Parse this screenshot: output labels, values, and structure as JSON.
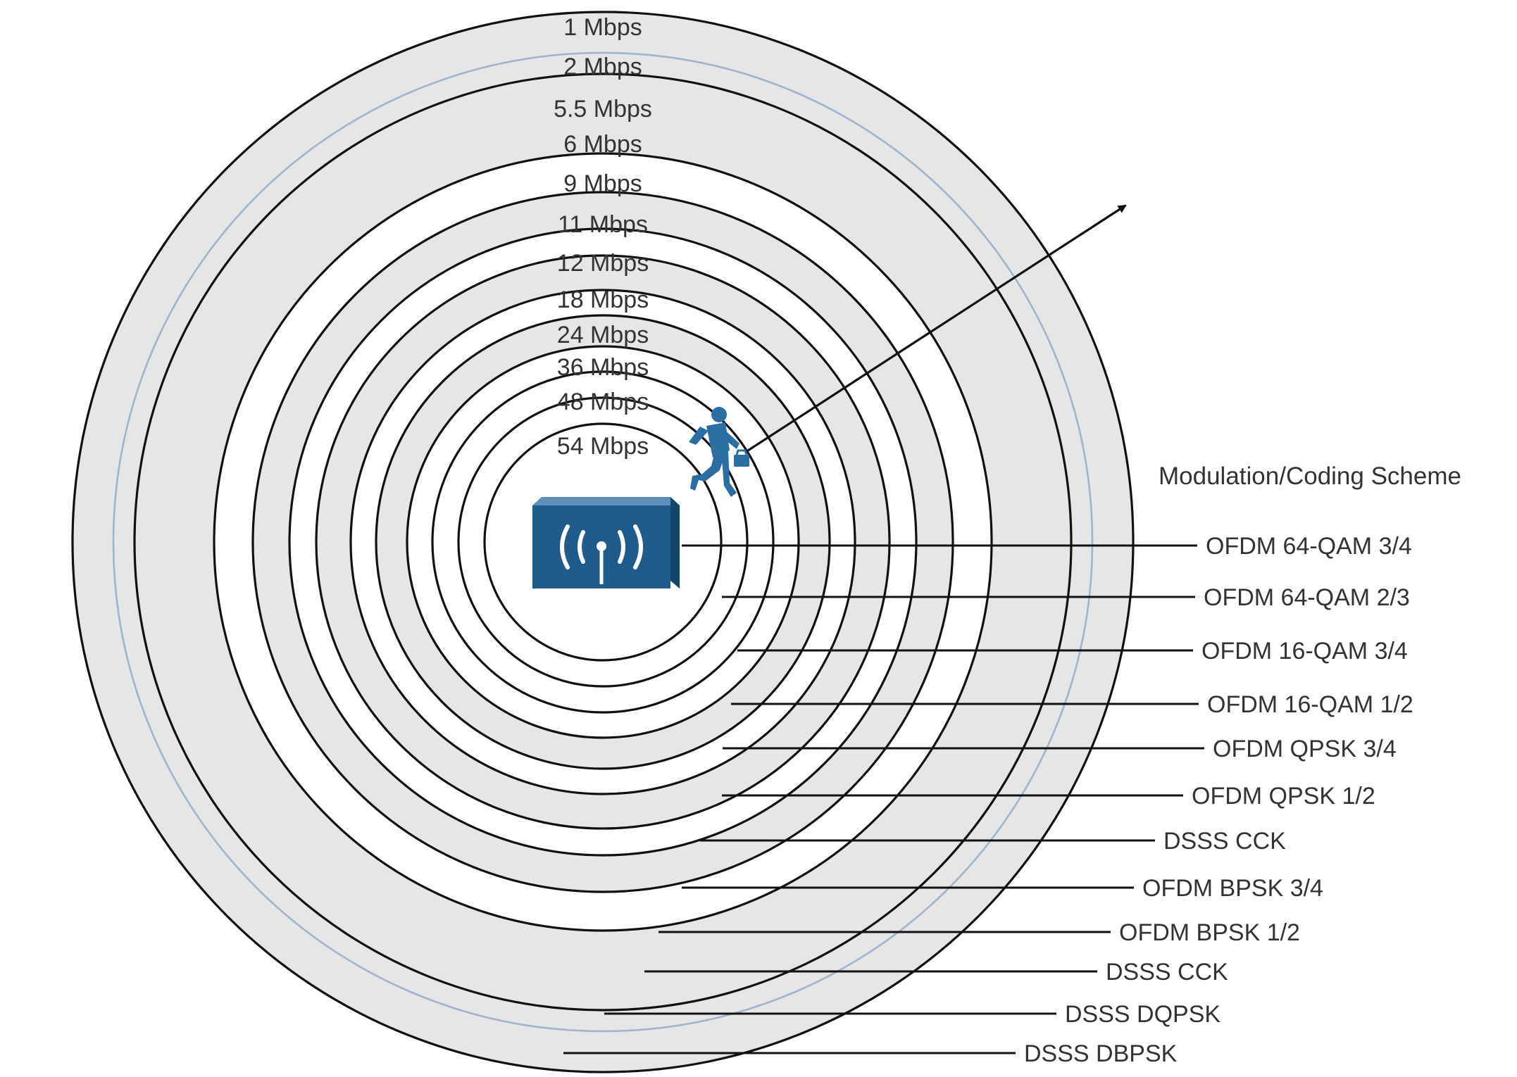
{
  "legend_title": "Modulation/Coding Scheme",
  "colors": {
    "ring_fill_shaded": "#e6e6e6",
    "ring_fill_plain": "#ffffff",
    "ring_stroke": "#111111",
    "blue_ring_stroke": "#9fb4cc",
    "access_point": "#1f5c8c",
    "person": "#2a6fa3",
    "text": "#333333"
  },
  "icons": {
    "access_point": "wireless-access-point-icon",
    "person": "running-person-with-briefcase-icon",
    "arrow": "arrow-icon"
  },
  "rings": [
    {
      "rate": "54 Mbps",
      "scheme": "OFDM 64-QAM 3/4"
    },
    {
      "rate": "48 Mbps",
      "scheme": "OFDM 64-QAM 2/3"
    },
    {
      "rate": "36 Mbps",
      "scheme": "OFDM 16-QAM 3/4"
    },
    {
      "rate": "24 Mbps",
      "scheme": "OFDM 16-QAM 1/2"
    },
    {
      "rate": "18 Mbps",
      "scheme": "OFDM QPSK 3/4"
    },
    {
      "rate": "12 Mbps",
      "scheme": "OFDM QPSK 1/2"
    },
    {
      "rate": "11 Mbps",
      "scheme": "DSSS CCK"
    },
    {
      "rate": "9 Mbps",
      "scheme": "OFDM BPSK 3/4"
    },
    {
      "rate": "6 Mbps",
      "scheme": "OFDM BPSK 1/2"
    },
    {
      "rate": "5.5 Mbps",
      "scheme": "DSSS CCK"
    },
    {
      "rate": "2 Mbps",
      "scheme": "DSSS DQPSK"
    },
    {
      "rate": "1 Mbps",
      "scheme": "DSSS DBPSK"
    }
  ]
}
